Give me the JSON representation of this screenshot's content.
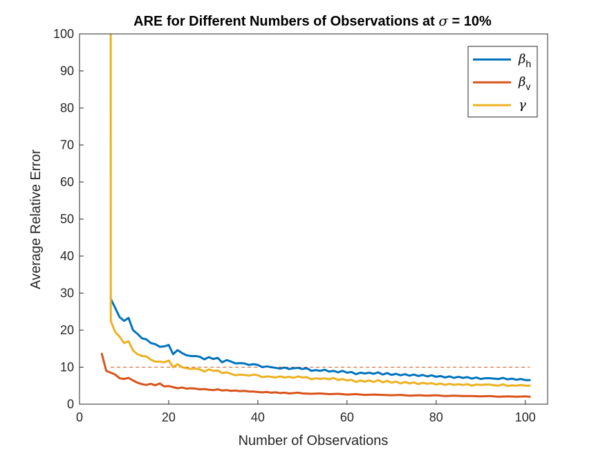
{
  "chart_data": {
    "type": "line",
    "title_prefix": "ARE for Different Numbers of Observations at ",
    "title_symbol": "σ",
    "title_suffix": " = 10%",
    "xlabel": "Number of Observations",
    "ylabel": "Average Relative Error",
    "xlim": [
      0,
      105
    ],
    "ylim": [
      0,
      100
    ],
    "xticks": [
      "0",
      "20",
      "40",
      "60",
      "80",
      "100"
    ],
    "yticks": [
      "0",
      "10",
      "20",
      "30",
      "40",
      "50",
      "60",
      "70",
      "80",
      "90",
      "100"
    ],
    "grid": false,
    "legend_position": "top-right",
    "reference_line": {
      "y": 10,
      "style": "dashed",
      "color": "#D95319"
    },
    "series": [
      {
        "symbol": "β",
        "subscript": "h",
        "color": "#0072BD",
        "points": [
          [
            7,
            28.5
          ],
          [
            8,
            26
          ],
          [
            9,
            23.5
          ],
          [
            10,
            22.5
          ],
          [
            11,
            23.3
          ],
          [
            12,
            20
          ],
          [
            13,
            19
          ],
          [
            14,
            17.8
          ],
          [
            15,
            17.5
          ],
          [
            16,
            16.5
          ],
          [
            17,
            16.2
          ],
          [
            18,
            15.5
          ],
          [
            19,
            15.6
          ],
          [
            20,
            16
          ],
          [
            21,
            13.5
          ],
          [
            22,
            14.6
          ],
          [
            23,
            13.8
          ],
          [
            24,
            13.2
          ],
          [
            25,
            13
          ],
          [
            26,
            13
          ],
          [
            27,
            12.8
          ],
          [
            28,
            12.1
          ],
          [
            29,
            12.7
          ],
          [
            30,
            12.2
          ],
          [
            31,
            12.5
          ],
          [
            32,
            11.3
          ],
          [
            33,
            11.9
          ],
          [
            34,
            11.5
          ],
          [
            35,
            11
          ],
          [
            36,
            11.1
          ],
          [
            37,
            11
          ],
          [
            38,
            10.6
          ],
          [
            39,
            10.8
          ],
          [
            40,
            10.6
          ],
          [
            41,
            10
          ],
          [
            42,
            10.2
          ],
          [
            43,
            10
          ],
          [
            44,
            9.8
          ],
          [
            45,
            9.6
          ],
          [
            46,
            9.9
          ],
          [
            47,
            9.5
          ],
          [
            48,
            9.7
          ],
          [
            49,
            9.8
          ],
          [
            50,
            9.5
          ],
          [
            51,
            9.7
          ],
          [
            52,
            9
          ],
          [
            53,
            9.2
          ],
          [
            54,
            9
          ],
          [
            55,
            9.3
          ],
          [
            56,
            8.8
          ],
          [
            57,
            9
          ],
          [
            58,
            8.6
          ],
          [
            59,
            9
          ],
          [
            60,
            8.5
          ],
          [
            61,
            8.7
          ],
          [
            62,
            8.1
          ],
          [
            63,
            8.5
          ],
          [
            64,
            8.3
          ],
          [
            65,
            8.5
          ],
          [
            66,
            8.2
          ],
          [
            67,
            8.6
          ],
          [
            68,
            8
          ],
          [
            69,
            8.4
          ],
          [
            70,
            7.9
          ],
          [
            71,
            8.2
          ],
          [
            72,
            7.8
          ],
          [
            73,
            8.1
          ],
          [
            74,
            7.7
          ],
          [
            75,
            8
          ],
          [
            76,
            7.6
          ],
          [
            77,
            7.9
          ],
          [
            78,
            7.5
          ],
          [
            79,
            7.8
          ],
          [
            80,
            7.4
          ],
          [
            81,
            7.6
          ],
          [
            82,
            7.2
          ],
          [
            83,
            7.5
          ],
          [
            84,
            7.1
          ],
          [
            85,
            7.4
          ],
          [
            86,
            7.1
          ],
          [
            87,
            7.3
          ],
          [
            88,
            6.9
          ],
          [
            89,
            7.2
          ],
          [
            90,
            6.8
          ],
          [
            91,
            7
          ],
          [
            92,
            7
          ],
          [
            93,
            6.9
          ],
          [
            94,
            6.8
          ],
          [
            95,
            7.1
          ],
          [
            96,
            6.7
          ],
          [
            97,
            6.9
          ],
          [
            98,
            6.6
          ],
          [
            99,
            6.8
          ],
          [
            100,
            6.5
          ],
          [
            101,
            6.5
          ]
        ]
      },
      {
        "symbol": "β",
        "subscript": "v",
        "color": "#D95319",
        "points": [
          [
            5,
            13.6
          ],
          [
            6,
            9
          ],
          [
            7,
            8.5
          ],
          [
            8,
            8
          ],
          [
            9,
            7
          ],
          [
            10,
            6.8
          ],
          [
            11,
            7.1
          ],
          [
            12,
            6.4
          ],
          [
            13,
            5.8
          ],
          [
            14,
            5.4
          ],
          [
            15,
            5.2
          ],
          [
            16,
            5.5
          ],
          [
            17,
            5.1
          ],
          [
            18,
            5.6
          ],
          [
            19,
            4.8
          ],
          [
            20,
            4.9
          ],
          [
            21,
            4.6
          ],
          [
            22,
            4.3
          ],
          [
            23,
            4.5
          ],
          [
            24,
            4.2
          ],
          [
            25,
            4.3
          ],
          [
            26,
            4.2
          ],
          [
            27,
            4
          ],
          [
            28,
            4.1
          ],
          [
            29,
            3.9
          ],
          [
            30,
            3.8
          ],
          [
            31,
            4
          ],
          [
            32,
            3.7
          ],
          [
            33,
            3.8
          ],
          [
            34,
            3.6
          ],
          [
            35,
            3.7
          ],
          [
            36,
            3.5
          ],
          [
            37,
            3.6
          ],
          [
            38,
            3.4
          ],
          [
            39,
            3.4
          ],
          [
            40,
            3.3
          ],
          [
            41,
            3.2
          ],
          [
            42,
            3.3
          ],
          [
            43,
            3.1
          ],
          [
            44,
            3.2
          ],
          [
            45,
            3
          ],
          [
            46,
            3.1
          ],
          [
            47,
            2.9
          ],
          [
            48,
            3
          ],
          [
            49,
            3.1
          ],
          [
            50,
            2.9
          ],
          [
            52,
            2.8
          ],
          [
            54,
            2.9
          ],
          [
            56,
            2.7
          ],
          [
            58,
            2.8
          ],
          [
            60,
            2.6
          ],
          [
            62,
            2.7
          ],
          [
            64,
            2.5
          ],
          [
            66,
            2.6
          ],
          [
            68,
            2.5
          ],
          [
            70,
            2.4
          ],
          [
            72,
            2.5
          ],
          [
            74,
            2.3
          ],
          [
            76,
            2.4
          ],
          [
            78,
            2.3
          ],
          [
            80,
            2.4
          ],
          [
            82,
            2.2
          ],
          [
            84,
            2.3
          ],
          [
            86,
            2.2
          ],
          [
            88,
            2.2
          ],
          [
            90,
            2.1
          ],
          [
            92,
            2.2
          ],
          [
            94,
            2
          ],
          [
            96,
            2.1
          ],
          [
            98,
            2
          ],
          [
            100,
            2.1
          ],
          [
            101,
            2
          ]
        ]
      },
      {
        "symbol": "γ",
        "subscript": "",
        "color": "#EDB120",
        "points": [
          [
            7,
            100
          ],
          [
            7.01,
            22.5
          ],
          [
            8,
            19.5
          ],
          [
            9,
            18.2
          ],
          [
            10,
            16.5
          ],
          [
            11,
            17
          ],
          [
            12,
            14.5
          ],
          [
            13,
            13.5
          ],
          [
            14,
            13
          ],
          [
            15,
            12.9
          ],
          [
            16,
            12
          ],
          [
            17,
            11.5
          ],
          [
            18,
            11.5
          ],
          [
            19,
            11.3
          ],
          [
            20,
            11.8
          ],
          [
            21,
            10
          ],
          [
            22,
            10.8
          ],
          [
            23,
            10
          ],
          [
            24,
            9.7
          ],
          [
            25,
            9.5
          ],
          [
            26,
            9.6
          ],
          [
            27,
            9.4
          ],
          [
            28,
            8.8
          ],
          [
            29,
            9.4
          ],
          [
            30,
            9
          ],
          [
            31,
            9.1
          ],
          [
            32,
            8.4
          ],
          [
            33,
            8.6
          ],
          [
            34,
            8.2
          ],
          [
            35,
            7.8
          ],
          [
            36,
            8
          ],
          [
            37,
            7.9
          ],
          [
            38,
            7.7
          ],
          [
            39,
            8
          ],
          [
            40,
            7.8
          ],
          [
            41,
            7.3
          ],
          [
            42,
            7.5
          ],
          [
            43,
            7.4
          ],
          [
            44,
            7.2
          ],
          [
            45,
            7.5
          ],
          [
            46,
            7.2
          ],
          [
            47,
            7.4
          ],
          [
            48,
            7.1
          ],
          [
            49,
            7.5
          ],
          [
            50,
            7.2
          ],
          [
            51,
            7.3
          ],
          [
            52,
            6.7
          ],
          [
            53,
            7
          ],
          [
            54,
            6.8
          ],
          [
            55,
            7
          ],
          [
            56,
            6.7
          ],
          [
            57,
            7.1
          ],
          [
            58,
            6.5
          ],
          [
            59,
            6.8
          ],
          [
            60,
            6.4
          ],
          [
            61,
            6.6
          ],
          [
            62,
            6
          ],
          [
            63,
            6.4
          ],
          [
            64,
            6.1
          ],
          [
            65,
            6.4
          ],
          [
            66,
            6
          ],
          [
            67,
            6.5
          ],
          [
            68,
            5.9
          ],
          [
            69,
            6.3
          ],
          [
            70,
            5.8
          ],
          [
            71,
            6.1
          ],
          [
            72,
            5.6
          ],
          [
            73,
            6
          ],
          [
            74,
            5.6
          ],
          [
            75,
            5.9
          ],
          [
            76,
            5.4
          ],
          [
            77,
            5.8
          ],
          [
            78,
            5.5
          ],
          [
            79,
            5.7
          ],
          [
            80,
            5.3
          ],
          [
            81,
            5.6
          ],
          [
            82,
            5.2
          ],
          [
            83,
            5.5
          ],
          [
            84,
            5.2
          ],
          [
            85,
            5.4
          ],
          [
            86,
            5.2
          ],
          [
            87,
            5.4
          ],
          [
            88,
            5
          ],
          [
            89,
            5.3
          ],
          [
            90,
            5.2
          ],
          [
            91,
            5.3
          ],
          [
            92,
            5.3
          ],
          [
            93,
            5.1
          ],
          [
            94,
            5
          ],
          [
            95,
            5.4
          ],
          [
            96,
            4.9
          ],
          [
            97,
            5.1
          ],
          [
            98,
            5
          ],
          [
            99,
            5.2
          ],
          [
            100,
            5
          ],
          [
            101,
            5
          ]
        ]
      }
    ]
  }
}
